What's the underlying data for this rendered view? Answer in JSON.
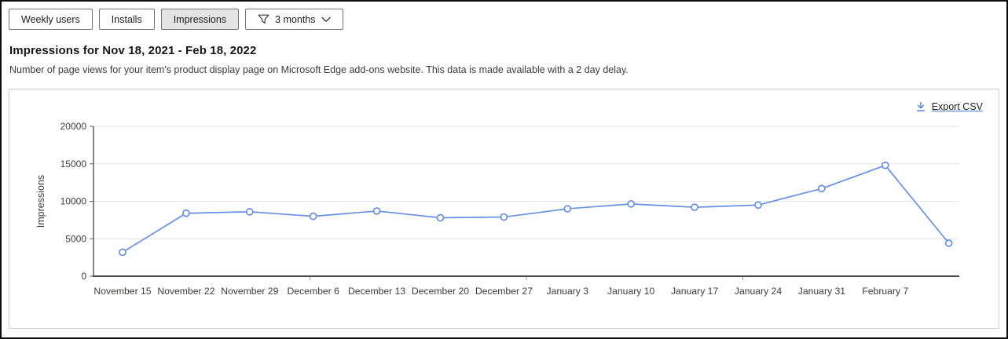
{
  "toolbar": {
    "buttons": [
      {
        "label": "Weekly users",
        "selected": false
      },
      {
        "label": "Installs",
        "selected": false
      },
      {
        "label": "Impressions",
        "selected": true
      }
    ],
    "filter": {
      "label": "3 months"
    }
  },
  "header": {
    "title": "Impressions for Nov 18, 2021 - Feb 18, 2022",
    "subtitle": "Number of page views for your item's product display page on Microsoft Edge add-ons website. This data is made available with a 2 day delay."
  },
  "panel": {
    "export_label": "Export CSV"
  },
  "colors": {
    "line": "#6690e4",
    "marker_fill": "#ffffff",
    "grid": "#e4e4e4",
    "y_axis": "#5f5f5f",
    "x_axis": "#474747",
    "tick_text": "#3d3c3b",
    "selected_button_bg": "#e4e4e4",
    "export_icon_blue": "#4a7fd6"
  },
  "chart_data": {
    "type": "line",
    "title": "",
    "xlabel": "",
    "ylabel": "Impressions",
    "ylim": [
      0,
      20000
    ],
    "yticks": [
      0,
      5000,
      10000,
      15000,
      20000
    ],
    "grid": true,
    "legend": false,
    "marker": "open-circle",
    "categories": [
      "November 15",
      "November 22",
      "November 29",
      "December 6",
      "December 13",
      "December 20",
      "December 27",
      "January 3",
      "January 10",
      "January 17",
      "January 24",
      "January 31",
      "February 7",
      ""
    ],
    "values": [
      3200,
      8400,
      8600,
      8000,
      8700,
      7800,
      7900,
      9000,
      9650,
      9200,
      9500,
      11700,
      14800,
      4400
    ]
  }
}
